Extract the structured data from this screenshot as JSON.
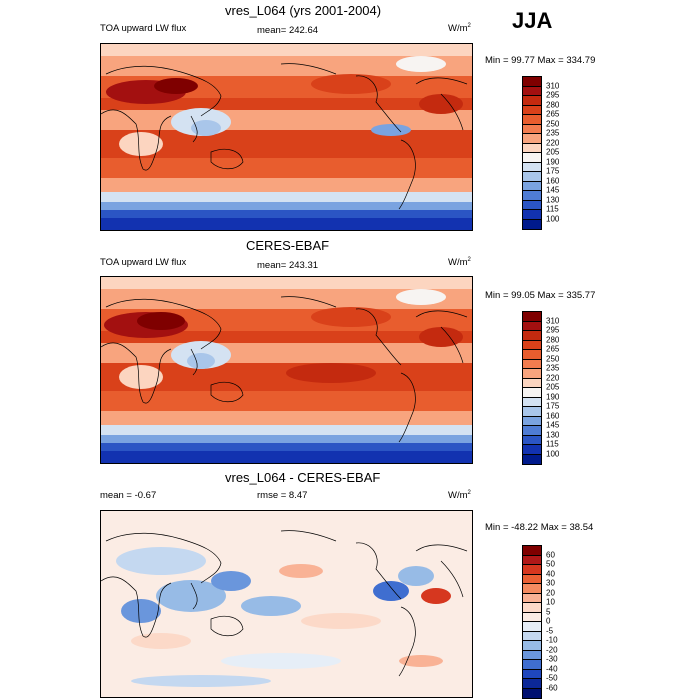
{
  "season": "JJA",
  "panels": [
    {
      "title": "vres_L064 (yrs 2001-2004)",
      "left_label": "TOA upward LW flux",
      "center_label": "mean= 242.64",
      "units_base": "W/m",
      "units_exp": "2",
      "minmax": "Min =  99.77 Max = 334.79",
      "colorbar_labels": [
        "310",
        "295",
        "280",
        "265",
        "250",
        "235",
        "220",
        "205",
        "190",
        "175",
        "160",
        "145",
        "130",
        "115",
        "100"
      ]
    },
    {
      "title": "CERES-EBAF",
      "left_label": "TOA upward LW flux",
      "center_label": "mean= 243.31",
      "units_base": "W/m",
      "units_exp": "2",
      "minmax": "Min =  99.05 Max = 335.77",
      "colorbar_labels": [
        "310",
        "295",
        "280",
        "265",
        "250",
        "235",
        "220",
        "205",
        "190",
        "175",
        "160",
        "145",
        "130",
        "115",
        "100"
      ]
    },
    {
      "title": "vres_L064 - CERES-EBAF",
      "left_label": "mean =  -0.67",
      "center_label": "rmse =   8.47",
      "units_base": "W/m",
      "units_exp": "2",
      "minmax": "Min = -48.22 Max =  38.54",
      "colorbar_labels": [
        "60",
        "50",
        "40",
        "30",
        "20",
        "10",
        "5",
        "0",
        "-5",
        "-10",
        "-20",
        "-30",
        "-40",
        "-50",
        "-60"
      ]
    }
  ],
  "colors": {
    "flux_scale": [
      "#7f0000",
      "#a31010",
      "#c42a0f",
      "#d9411a",
      "#e85d2e",
      "#f27c4f",
      "#f8a47e",
      "#fcd5c0",
      "#f7f4f2",
      "#d4e2f2",
      "#a9c6ea",
      "#7aa3e0",
      "#4f7cd4",
      "#2b55c4",
      "#1232b0",
      "#001a8c"
    ],
    "anom_scale": [
      "#7f0000",
      "#b01818",
      "#d6371f",
      "#ea6034",
      "#f48b60",
      "#f9b295",
      "#fcd9c8",
      "#fbece4",
      "#e6eef7",
      "#c4d8f0",
      "#97bbe6",
      "#6a96dc",
      "#3f6ed0",
      "#1f47bd",
      "#0c2898",
      "#001070"
    ],
    "coastline": "#000000"
  },
  "chart_data": [
    {
      "type": "heatmap",
      "title": "vres_L064 (yrs 2001-2004)",
      "variable": "TOA upward LW flux",
      "units": "W/m2",
      "mean": 242.64,
      "min": 99.77,
      "max": 334.79,
      "levels": [
        100,
        115,
        130,
        145,
        160,
        175,
        190,
        205,
        220,
        235,
        250,
        265,
        280,
        295,
        310
      ]
    },
    {
      "type": "heatmap",
      "title": "CERES-EBAF",
      "variable": "TOA upward LW flux",
      "units": "W/m2",
      "mean": 243.31,
      "min": 99.05,
      "max": 335.77,
      "levels": [
        100,
        115,
        130,
        145,
        160,
        175,
        190,
        205,
        220,
        235,
        250,
        265,
        280,
        295,
        310
      ]
    },
    {
      "type": "heatmap",
      "title": "vres_L064 - CERES-EBAF",
      "units": "W/m2",
      "mean": -0.67,
      "rmse": 8.47,
      "min": -48.22,
      "max": 38.54,
      "levels": [
        -60,
        -50,
        -40,
        -30,
        -20,
        -10,
        -5,
        0,
        5,
        10,
        20,
        30,
        40,
        50,
        60
      ]
    }
  ]
}
